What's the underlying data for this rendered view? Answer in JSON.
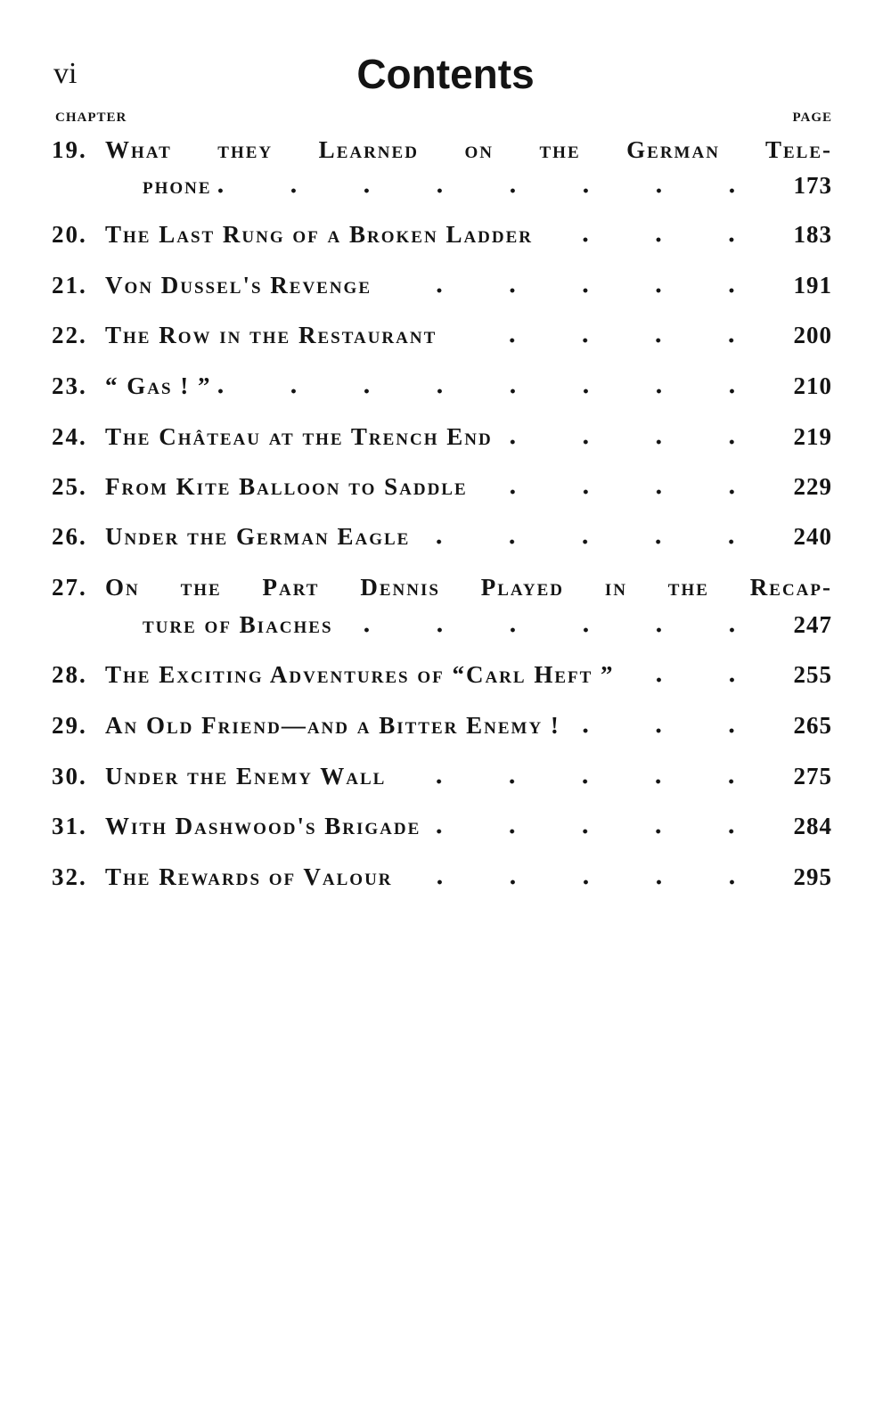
{
  "header": {
    "folio": "vi",
    "title": "Contents",
    "chapter_label": "CHAPTER",
    "page_label": "PAGE"
  },
  "entries": [
    {
      "num": "19.",
      "title": "What they Learned on the German Tele-",
      "title_cont": "phone",
      "page": "173"
    },
    {
      "num": "20.",
      "title": "The Last Rung of a Broken Ladder",
      "page": "183"
    },
    {
      "num": "21.",
      "title": "Von Dussel's Revenge",
      "page": "191"
    },
    {
      "num": "22.",
      "title": "The Row in the Restaurant",
      "page": "200"
    },
    {
      "num": "23.",
      "title": "“ Gas ! ”",
      "page": "210"
    },
    {
      "num": "24.",
      "title": "The Château at the Trench End",
      "page": "219"
    },
    {
      "num": "25.",
      "title": "From Kite Balloon to Saddle",
      "page": "229"
    },
    {
      "num": "26.",
      "title": "Under the German Eagle",
      "page": "240"
    },
    {
      "num": "27.",
      "title": "On the Part Dennis Played in the Recap-",
      "title_cont": "ture of Biaches",
      "page": "247"
    },
    {
      "num": "28.",
      "title": "The Exciting Adventures of “Carl Heft ”",
      "page": "255"
    },
    {
      "num": "29.",
      "title": "An Old Friend—and a Bitter Enemy !",
      "page": "265"
    },
    {
      "num": "30.",
      "title": "Under the Enemy Wall",
      "page": "275"
    },
    {
      "num": "31.",
      "title": "With Dashwood's Brigade",
      "page": "284"
    },
    {
      "num": "32.",
      "title": "The Rewards of Valour",
      "page": "295"
    }
  ]
}
